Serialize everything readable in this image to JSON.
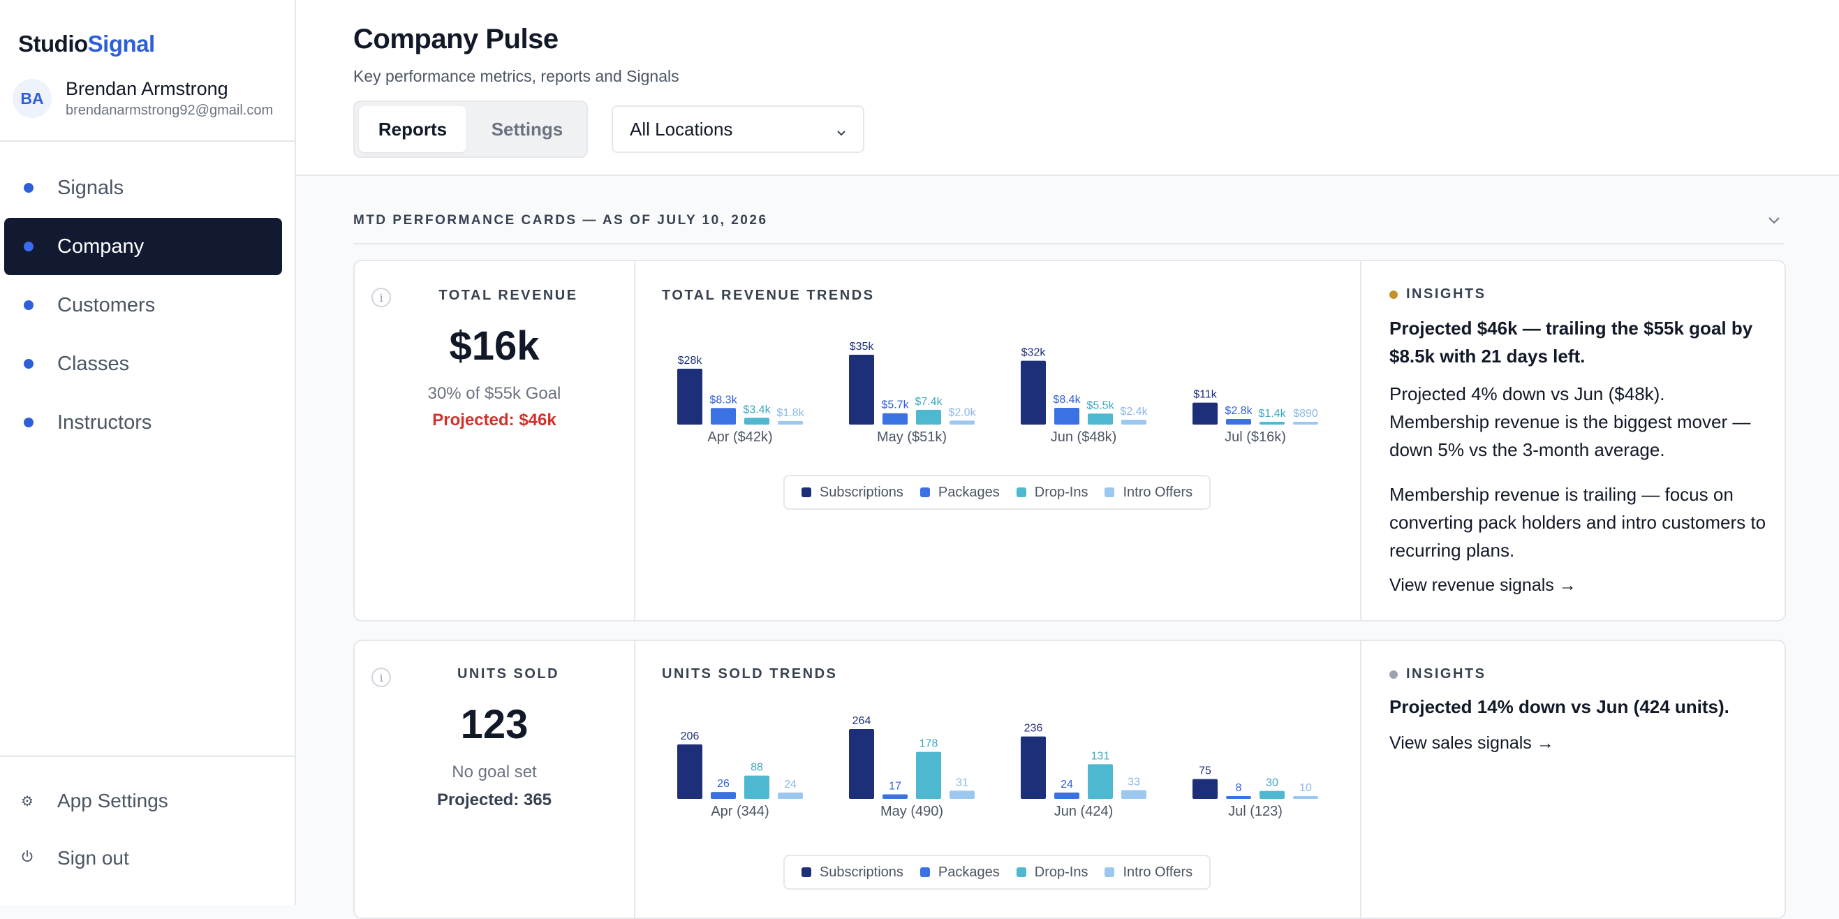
{
  "brand": {
    "part1": "Studio",
    "part2": "Signal",
    "accent_color": "#2f5fd8"
  },
  "user": {
    "initials": "BA",
    "name": "Brendan Armstrong",
    "email": "brendanarmstrong92@gmail.com"
  },
  "nav": {
    "items": [
      {
        "label": "Signals",
        "active": false
      },
      {
        "label": "Company",
        "active": true
      },
      {
        "label": "Customers",
        "active": false
      },
      {
        "label": "Classes",
        "active": false
      },
      {
        "label": "Instructors",
        "active": false
      }
    ]
  },
  "bottom_nav": {
    "settings_label": "App Settings",
    "settings_icon": "gear-icon",
    "signout_label": "Sign out",
    "signout_icon": "power-icon"
  },
  "header": {
    "title": "Company Pulse",
    "subtitle": "Key performance metrics, reports and Signals",
    "tabs": [
      {
        "label": "Reports",
        "active": true
      },
      {
        "label": "Settings",
        "active": false
      }
    ],
    "location_select": "All Locations"
  },
  "section": {
    "title": "MTD PERFORMANCE CARDS — AS OF JULY 10, 2026"
  },
  "colors": {
    "subscriptions": "#1e2f7a",
    "packages": "#3b72e3",
    "dropins": "#4db8cf",
    "intro": "#9cc7f0",
    "projected_red": "#d4302b",
    "insight_gold": "#c89128",
    "insight_gray": "#9ca3af"
  },
  "legend": [
    "Subscriptions",
    "Packages",
    "Drop-Ins",
    "Intro Offers"
  ],
  "cards": [
    {
      "metric_label": "TOTAL REVENUE",
      "value": "$16k",
      "goal": "30% of $55k Goal",
      "projected": "Projected: $46k",
      "trend_title": "TOTAL REVENUE TRENDS",
      "insights_label": "INSIGHTS",
      "insight_headline": "Projected $46k — trailing the $55k goal by $8.5k with 21 days left.",
      "insight_paragraphs": [
        "Projected 4% down vs Jun ($48k). Membership revenue is the biggest mover — down 5% vs the 3-month average.",
        "Membership revenue is trailing — focus on converting pack holders and intro customers to recurring plans."
      ],
      "insight_link": "View revenue signals →"
    },
    {
      "metric_label": "UNITS SOLD",
      "value": "123",
      "goal": "No goal set",
      "projected": "Projected: 365",
      "trend_title": "UNITS SOLD TRENDS",
      "insights_label": "INSIGHTS",
      "insight_headline": "Projected 14% down vs Jun (424 units).",
      "insight_paragraphs": [],
      "insight_link": "View sales signals →"
    }
  ],
  "chart_data": [
    {
      "type": "bar",
      "title": "TOTAL REVENUE TRENDS",
      "categories": [
        "Apr ($42k)",
        "May ($51k)",
        "Jun ($48k)",
        "Jul ($16k)"
      ],
      "series": [
        {
          "name": "Subscriptions",
          "values": [
            28,
            35,
            32,
            11
          ],
          "labels": [
            "$28k",
            "$35k",
            "$32k",
            "$11k"
          ]
        },
        {
          "name": "Packages",
          "values": [
            8.3,
            5.7,
            8.4,
            2.8
          ],
          "labels": [
            "$8.3k",
            "$5.7k",
            "$8.4k",
            "$2.8k"
          ]
        },
        {
          "name": "Drop-Ins",
          "values": [
            3.4,
            7.4,
            5.5,
            1.4
          ],
          "labels": [
            "$3.4k",
            "$7.4k",
            "$5.5k",
            "$1.4k"
          ]
        },
        {
          "name": "Intro Offers",
          "values": [
            1.8,
            2.0,
            2.4,
            0.89
          ],
          "labels": [
            "$1.8k",
            "$2.0k",
            "$2.4k",
            "$890"
          ]
        }
      ],
      "ymax": 35
    },
    {
      "type": "bar",
      "title": "UNITS SOLD TRENDS",
      "categories": [
        "Apr (344)",
        "May (490)",
        "Jun (424)",
        "Jul (123)"
      ],
      "series": [
        {
          "name": "Subscriptions",
          "values": [
            206,
            264,
            236,
            75
          ],
          "labels": [
            "206",
            "264",
            "236",
            "75"
          ]
        },
        {
          "name": "Packages",
          "values": [
            26,
            17,
            24,
            8
          ],
          "labels": [
            "26",
            "17",
            "24",
            "8"
          ]
        },
        {
          "name": "Drop-Ins",
          "values": [
            88,
            178,
            131,
            30
          ],
          "labels": [
            "88",
            "178",
            "131",
            "30"
          ]
        },
        {
          "name": "Intro Offers",
          "values": [
            24,
            31,
            33,
            10
          ],
          "labels": [
            "24",
            "31",
            "33",
            "10"
          ]
        }
      ],
      "ymax": 264
    }
  ]
}
